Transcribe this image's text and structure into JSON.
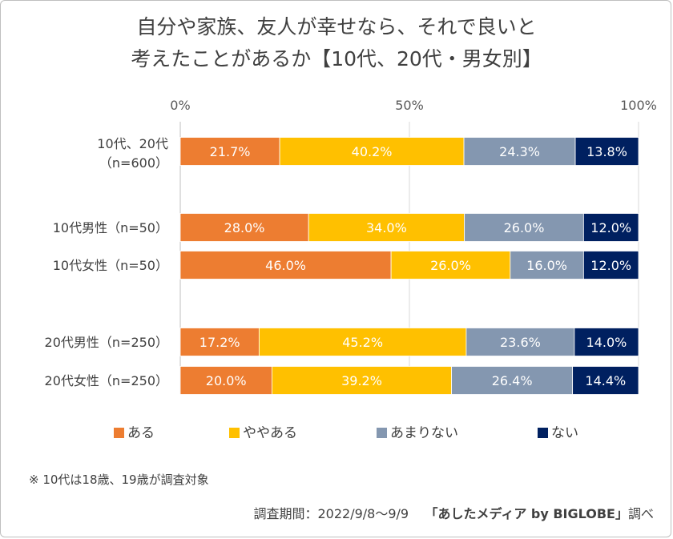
{
  "chart_data": {
    "type": "bar",
    "orientation": "horizontal-stacked-100",
    "title_line1": "自分や家族、友人が幸せなら、それで良いと",
    "title_line2": "考えたことがあるか【10代、20代・男女別】",
    "x_ticks": [
      "0%",
      "50%",
      "100%"
    ],
    "xlim": [
      0,
      100
    ],
    "grid": true,
    "legend_position": "bottom",
    "categories": [
      {
        "label1": "10代、20代",
        "label2": "（n=600）"
      },
      {
        "label1": "10代男性（n=50）",
        "label2": ""
      },
      {
        "label1": "10代女性（n=50）",
        "label2": ""
      },
      {
        "label1": "20代男性（n=250）",
        "label2": ""
      },
      {
        "label1": "20代女性（n=250）",
        "label2": ""
      }
    ],
    "series": [
      {
        "name": "ある",
        "color": "#ed7d31",
        "label_color": "#ffffff",
        "values": [
          21.7,
          28.0,
          46.0,
          17.2,
          20.0
        ],
        "labels": [
          "21.7%",
          "28.0%",
          "46.0%",
          "17.2%",
          "20.0%"
        ]
      },
      {
        "name": "ややある",
        "color": "#ffc000",
        "label_color": "#ffffff",
        "values": [
          40.2,
          34.0,
          26.0,
          45.2,
          39.2
        ],
        "labels": [
          "40.2%",
          "34.0%",
          "26.0%",
          "45.2%",
          "39.2%"
        ]
      },
      {
        "name": "あまりない",
        "color": "#8497b0",
        "label_color": "#ffffff",
        "values": [
          24.3,
          26.0,
          16.0,
          23.6,
          26.4
        ],
        "labels": [
          "24.3%",
          "26.0%",
          "16.0%",
          "23.6%",
          "26.4%"
        ]
      },
      {
        "name": "ない",
        "color": "#002060",
        "label_color": "#ffffff",
        "values": [
          13.8,
          12.0,
          12.0,
          14.0,
          14.4
        ],
        "labels": [
          "13.8%",
          "12.0%",
          "12.0%",
          "14.0%",
          "14.4%"
        ]
      }
    ]
  },
  "footnote": "※ 10代は18歳、19歳が調査対象",
  "survey_period": "調査期間：2022/9/8～9/9",
  "source_brand": "「あしたメディア by BIGLOBE」",
  "source_suffix": "調べ"
}
